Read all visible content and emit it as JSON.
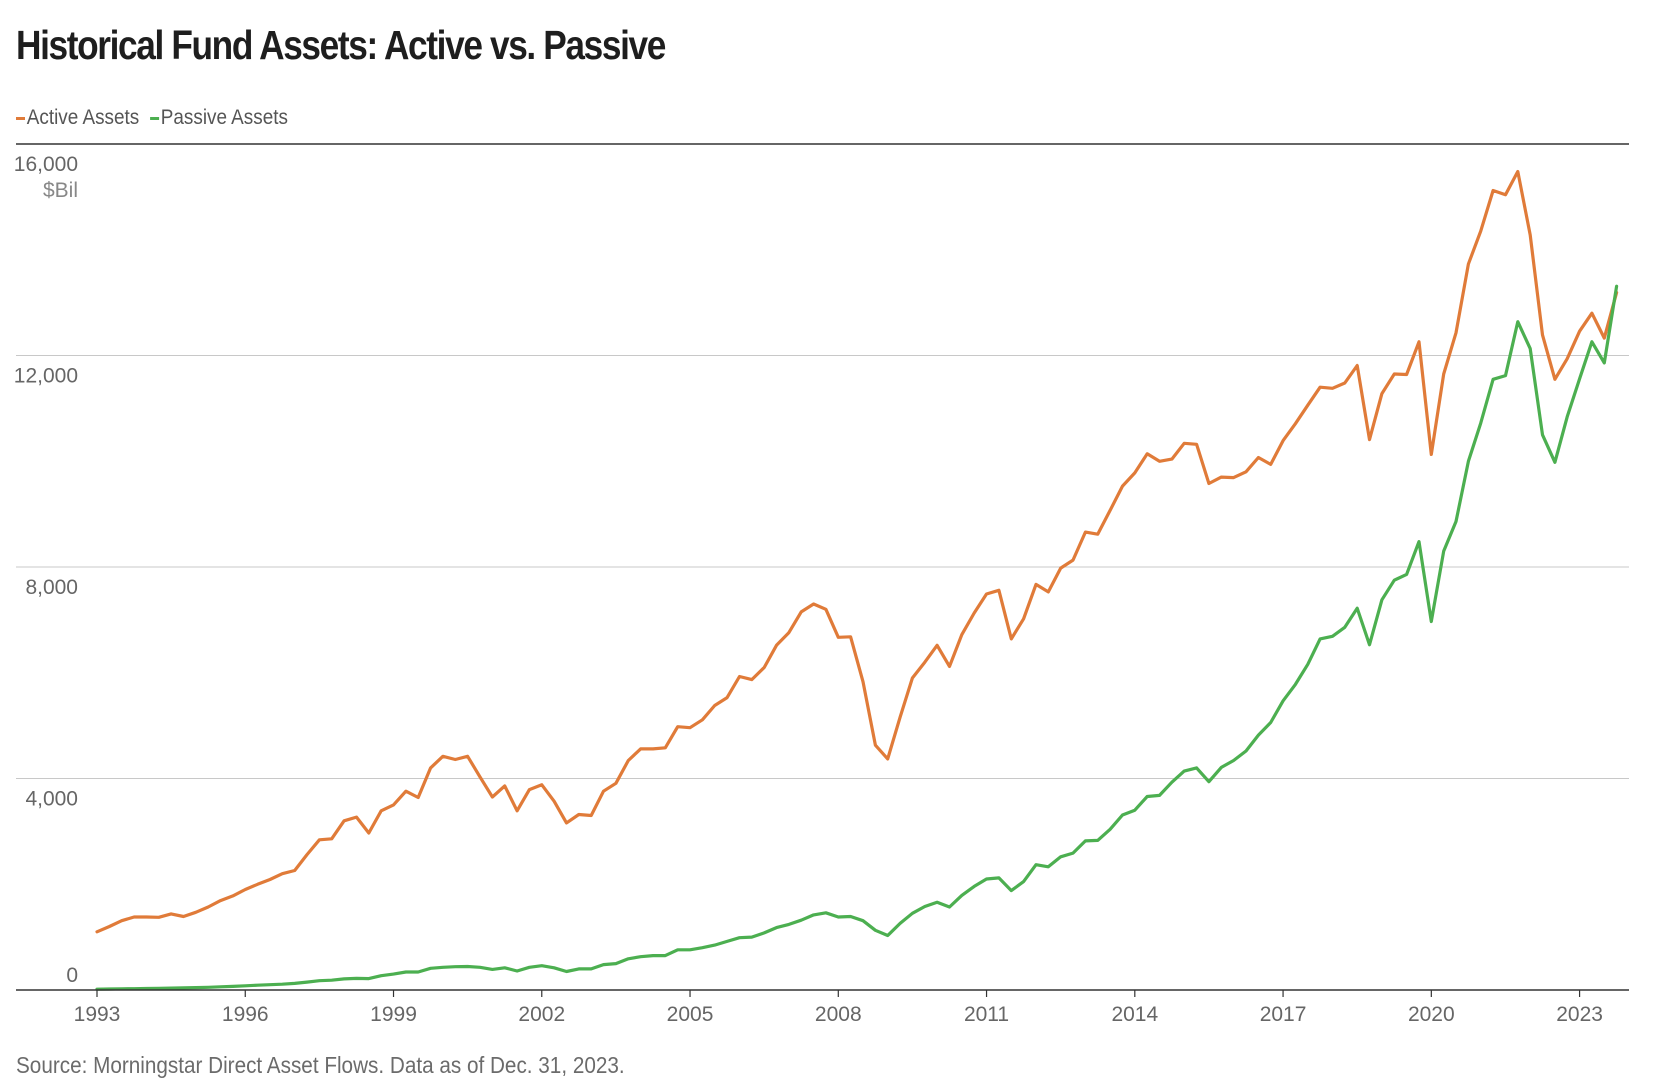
{
  "title": "Historical Fund Assets: Active vs. Passive",
  "source": "Source: Morningstar Direct Asset Flows. Data as of Dec. 31, 2023.",
  "colors": {
    "active": "#e07b39",
    "passive": "#4caf50",
    "grid": "#c8c8c8",
    "axis": "#333333",
    "tick_text": "#666666"
  },
  "chart_data": {
    "type": "line",
    "title": "Historical Fund Assets: Active vs. Passive",
    "ylabel": "$Bil",
    "ylim": [
      0,
      16000
    ],
    "y_ticks": [
      0,
      4000,
      8000,
      12000,
      16000
    ],
    "y_tick_labels": [
      "0",
      "4,000",
      "8,000",
      "12,000",
      "16,000"
    ],
    "y_unit_label": "$Bil",
    "xlim": [
      1993.0,
      2024.0
    ],
    "x_tick_values": [
      1993,
      1996,
      1999,
      2002,
      2005,
      2008,
      2011,
      2014,
      2017,
      2020,
      2023
    ],
    "x_tick_labels": [
      "1993",
      "1996",
      "1999",
      "2002",
      "2005",
      "2008",
      "2011",
      "2014",
      "2017",
      "2020",
      "2023"
    ],
    "grid": true,
    "legend_position": "top-left",
    "series": [
      {
        "name": "Active Assets",
        "color": "#e07b39",
        "x": [
          1993.0,
          1993.25,
          1993.5,
          1993.75,
          1994.0,
          1994.25,
          1994.5,
          1994.75,
          1995.0,
          1995.25,
          1995.5,
          1995.75,
          1996.0,
          1996.25,
          1996.5,
          1996.75,
          1997.0,
          1997.25,
          1997.5,
          1997.75,
          1998.0,
          1998.25,
          1998.5,
          1998.75,
          1999.0,
          1999.25,
          1999.5,
          1999.75,
          2000.0,
          2000.25,
          2000.5,
          2000.75,
          2001.0,
          2001.25,
          2001.5,
          2001.75,
          2002.0,
          2002.25,
          2002.5,
          2002.75,
          2003.0,
          2003.25,
          2003.5,
          2003.75,
          2004.0,
          2004.25,
          2004.5,
          2004.75,
          2005.0,
          2005.25,
          2005.5,
          2005.75,
          2006.0,
          2006.25,
          2006.5,
          2006.75,
          2007.0,
          2007.25,
          2007.5,
          2007.75,
          2008.0,
          2008.25,
          2008.5,
          2008.75,
          2009.0,
          2009.25,
          2009.5,
          2009.75,
          2010.0,
          2010.25,
          2010.5,
          2010.75,
          2011.0,
          2011.25,
          2011.5,
          2011.75,
          2012.0,
          2012.25,
          2012.5,
          2012.75,
          2013.0,
          2013.25,
          2013.5,
          2013.75,
          2014.0,
          2014.25,
          2014.5,
          2014.75,
          2015.0,
          2015.25,
          2015.5,
          2015.75,
          2016.0,
          2016.25,
          2016.5,
          2016.75,
          2017.0,
          2017.25,
          2017.5,
          2017.75,
          2018.0,
          2018.25,
          2018.5,
          2018.75,
          2019.0,
          2019.25,
          2019.5,
          2019.75,
          2020.0,
          2020.25,
          2020.5,
          2020.75,
          2021.0,
          2021.25,
          2021.5,
          2021.75,
          2022.0,
          2022.25,
          2022.5,
          2022.75,
          2023.0,
          2023.25,
          2023.5,
          2023.75
        ],
        "values": [
          1100,
          1200,
          1310,
          1380,
          1380,
          1375,
          1440,
          1390,
          1470,
          1570,
          1690,
          1780,
          1900,
          2000,
          2090,
          2200,
          2260,
          2560,
          2840,
          2860,
          3200,
          3270,
          2970,
          3390,
          3500,
          3760,
          3640,
          4200,
          4420,
          4360,
          4420,
          4030,
          3650,
          3860,
          3390,
          3790,
          3880,
          3570,
          3160,
          3320,
          3300,
          3760,
          3910,
          4340,
          4560,
          4560,
          4580,
          4980,
          4960,
          5110,
          5380,
          5530,
          5930,
          5870,
          6100,
          6520,
          6760,
          7150,
          7300,
          7200,
          6670,
          6680,
          5830,
          4630,
          4370,
          5160,
          5900,
          6200,
          6520,
          6120,
          6720,
          7130,
          7490,
          7560,
          6640,
          7020,
          7670,
          7530,
          7980,
          8130,
          8660,
          8620,
          9070,
          9530,
          9780,
          10140,
          10000,
          10040,
          10340,
          10320,
          9580,
          9700,
          9690,
          9800,
          10070,
          9940,
          10390,
          10710,
          11060,
          11400,
          11380,
          11480,
          11810,
          10410,
          11280,
          11650,
          11640,
          12260,
          10130,
          11650,
          12430,
          13730,
          14350,
          15120,
          15040,
          15480,
          14280,
          12390,
          11550,
          11940,
          12460,
          12800,
          12330,
          13190
        ]
      },
      {
        "name": "Passive Assets",
        "color": "#4caf50",
        "x": [
          1993.0,
          1993.25,
          1993.5,
          1993.75,
          1994.0,
          1994.25,
          1994.5,
          1994.75,
          1995.0,
          1995.25,
          1995.5,
          1995.75,
          1996.0,
          1996.25,
          1996.5,
          1996.75,
          1997.0,
          1997.25,
          1997.5,
          1997.75,
          1998.0,
          1998.25,
          1998.5,
          1998.75,
          1999.0,
          1999.25,
          1999.5,
          1999.75,
          2000.0,
          2000.25,
          2000.5,
          2000.75,
          2001.0,
          2001.25,
          2001.5,
          2001.75,
          2002.0,
          2002.25,
          2002.5,
          2002.75,
          2003.0,
          2003.25,
          2003.5,
          2003.75,
          2004.0,
          2004.25,
          2004.5,
          2004.75,
          2005.0,
          2005.25,
          2005.5,
          2005.75,
          2006.0,
          2006.25,
          2006.5,
          2006.75,
          2007.0,
          2007.25,
          2007.5,
          2007.75,
          2008.0,
          2008.25,
          2008.5,
          2008.75,
          2009.0,
          2009.25,
          2009.5,
          2009.75,
          2010.0,
          2010.25,
          2010.5,
          2010.75,
          2011.0,
          2011.25,
          2011.5,
          2011.75,
          2012.0,
          2012.25,
          2012.5,
          2012.75,
          2013.0,
          2013.25,
          2013.5,
          2013.75,
          2014.0,
          2014.25,
          2014.5,
          2014.75,
          2015.0,
          2015.25,
          2015.5,
          2015.75,
          2016.0,
          2016.25,
          2016.5,
          2016.75,
          2017.0,
          2017.25,
          2017.5,
          2017.75,
          2018.0,
          2018.25,
          2018.5,
          2018.75,
          2019.0,
          2019.25,
          2019.5,
          2019.75,
          2020.0,
          2020.25,
          2020.5,
          2020.75,
          2021.0,
          2021.25,
          2021.5,
          2021.75,
          2022.0,
          2022.25,
          2022.5,
          2022.75,
          2023.0,
          2023.25,
          2023.5,
          2023.75
        ],
        "values": [
          15,
          18,
          22,
          25,
          28,
          30,
          35,
          40,
          45,
          52,
          60,
          68,
          80,
          90,
          100,
          110,
          125,
          150,
          175,
          185,
          210,
          220,
          215,
          270,
          300,
          340,
          340,
          410,
          430,
          440,
          445,
          430,
          390,
          420,
          360,
          430,
          460,
          420,
          350,
          400,
          400,
          480,
          500,
          590,
          630,
          650,
          650,
          760,
          760,
          800,
          850,
          920,
          990,
          1000,
          1080,
          1180,
          1240,
          1320,
          1420,
          1460,
          1380,
          1390,
          1310,
          1130,
          1030,
          1260,
          1450,
          1580,
          1660,
          1570,
          1790,
          1960,
          2100,
          2120,
          1880,
          2050,
          2370,
          2330,
          2520,
          2590,
          2820,
          2830,
          3040,
          3310,
          3400,
          3660,
          3680,
          3930,
          4140,
          4200,
          3940,
          4210,
          4340,
          4520,
          4820,
          5060,
          5470,
          5780,
          6160,
          6640,
          6690,
          6860,
          7220,
          6530,
          7380,
          7750,
          7860,
          8480,
          6970,
          8300,
          8860,
          10000,
          10720,
          11550,
          11620,
          12640,
          12130,
          10500,
          9980,
          10840,
          11560,
          12260,
          11860,
          13310
        ]
      }
    ]
  }
}
